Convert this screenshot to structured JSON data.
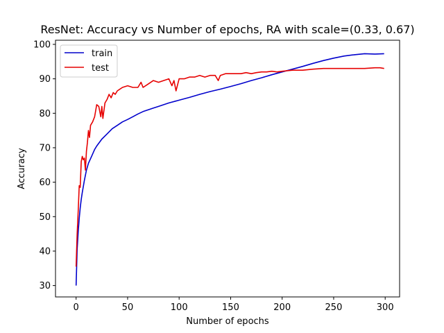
{
  "chart_data": {
    "type": "line",
    "title": "ResNet: Accuracy vs Number of epochs, RA with scale=(0.33, 0.67)",
    "xlabel": "Number of epochs",
    "ylabel": "Accuracy",
    "xlim": [
      -20,
      314
    ],
    "ylim": [
      26.7,
      101.2
    ],
    "xticks": [
      0,
      50,
      100,
      150,
      200,
      250,
      300
    ],
    "yticks": [
      30,
      40,
      50,
      60,
      70,
      80,
      90,
      100
    ],
    "grid": false,
    "legend": {
      "position": "top-left",
      "entries": [
        "train",
        "test"
      ]
    },
    "series": [
      {
        "name": "train",
        "color": "#0000cc",
        "x": [
          0,
          1,
          2,
          3,
          4,
          5,
          6,
          8,
          10,
          12,
          15,
          18,
          20,
          25,
          30,
          35,
          40,
          45,
          50,
          55,
          60,
          65,
          70,
          75,
          80,
          90,
          100,
          110,
          120,
          130,
          140,
          150,
          160,
          170,
          180,
          190,
          200,
          210,
          220,
          230,
          240,
          250,
          260,
          270,
          280,
          290,
          299
        ],
        "y": [
          30.0,
          40.5,
          45.5,
          49.5,
          52.5,
          55.0,
          57.0,
          60.5,
          63.5,
          65.5,
          67.5,
          69.5,
          70.5,
          72.5,
          74.0,
          75.5,
          76.5,
          77.5,
          78.2,
          79.0,
          79.8,
          80.5,
          81.0,
          81.5,
          82.0,
          83.0,
          83.8,
          84.6,
          85.5,
          86.3,
          87.0,
          87.8,
          88.6,
          89.5,
          90.3,
          91.2,
          92.0,
          92.8,
          93.6,
          94.5,
          95.3,
          96.0,
          96.6,
          97.0,
          97.3,
          97.2,
          97.3
        ]
      },
      {
        "name": "test",
        "color": "#e60000",
        "x": [
          0,
          1,
          2,
          3,
          4,
          5,
          6,
          7,
          8,
          9,
          10,
          11,
          12,
          13,
          14,
          15,
          16,
          18,
          20,
          22,
          24,
          25,
          26,
          28,
          30,
          32,
          34,
          36,
          38,
          40,
          45,
          50,
          55,
          60,
          63,
          65,
          70,
          75,
          80,
          85,
          90,
          93,
          95,
          97,
          100,
          105,
          110,
          115,
          120,
          125,
          130,
          135,
          138,
          140,
          145,
          150,
          155,
          160,
          165,
          170,
          175,
          180,
          185,
          190,
          195,
          200,
          210,
          220,
          230,
          240,
          250,
          260,
          270,
          280,
          290,
          295,
          299
        ],
        "y": [
          35.5,
          45.0,
          51.5,
          59.0,
          58.5,
          66.0,
          67.5,
          66.5,
          67.0,
          63.5,
          69.0,
          71.5,
          75.0,
          73.0,
          76.5,
          77.0,
          77.5,
          79.0,
          82.5,
          82.0,
          79.0,
          82.0,
          78.5,
          83.0,
          84.0,
          85.5,
          84.5,
          86.0,
          85.5,
          86.5,
          87.5,
          88.0,
          87.5,
          87.5,
          89.0,
          87.5,
          88.5,
          89.5,
          89.0,
          89.5,
          90.0,
          88.0,
          89.5,
          86.5,
          90.0,
          90.0,
          90.5,
          90.5,
          91.0,
          90.5,
          91.0,
          91.0,
          89.5,
          91.0,
          91.5,
          91.5,
          91.5,
          91.5,
          91.8,
          91.5,
          91.8,
          92.0,
          92.0,
          92.2,
          92.0,
          92.2,
          92.5,
          92.5,
          92.8,
          93.0,
          93.0,
          93.0,
          93.0,
          93.0,
          93.2,
          93.2,
          93.0
        ]
      }
    ]
  }
}
